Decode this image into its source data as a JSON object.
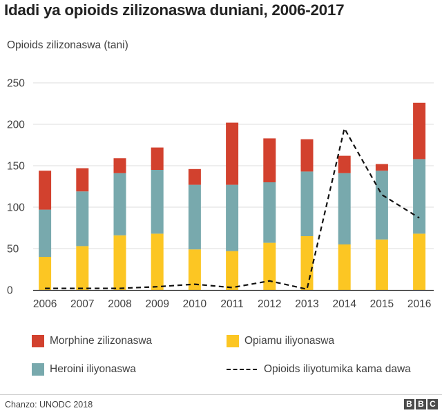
{
  "chart_data": {
    "type": "bar",
    "stacked": true,
    "title": "Idadi ya opioids zilizonaswa duniani, 2006-2017",
    "ylabel": "Opioids zilizonaswa (tani)",
    "xlabel": "",
    "ylim": [
      0,
      250
    ],
    "yticks": [
      0,
      50,
      100,
      150,
      200,
      250
    ],
    "grid": true,
    "categories": [
      "2006",
      "2007",
      "2008",
      "2009",
      "2010",
      "2011",
      "2012",
      "2013",
      "2014",
      "2015",
      "2016"
    ],
    "series": [
      {
        "name": "Opiamu iliyonaswa",
        "color": "#fcc623",
        "values": [
          40,
          53,
          66,
          68,
          49,
          47,
          57,
          65,
          55,
          61,
          68
        ]
      },
      {
        "name": "Heroini iliyonaswa",
        "color": "#78a9ad",
        "values": [
          57,
          66,
          75,
          77,
          78,
          80,
          73,
          78,
          86,
          83,
          90
        ]
      },
      {
        "name": "Morphine zilizonaswa",
        "color": "#d2412e",
        "values": [
          47,
          28,
          18,
          27,
          19,
          75,
          53,
          39,
          21,
          8,
          68
        ]
      }
    ],
    "line_series": {
      "name": "Opioids iliyotumika kama dawa",
      "color": "#111111",
      "style": "dashed",
      "values": [
        2,
        2,
        2,
        4,
        7,
        3,
        11,
        1,
        195,
        115,
        87
      ]
    }
  },
  "legend": {
    "morphine": "Morphine zilizonaswa",
    "opium": "Opiamu iliyonaswa",
    "heroin": "Heroini iliyonaswa",
    "medical": "Opioids iliyotumika kama dawa"
  },
  "footer": {
    "source": "Chanzo: UNODC 2018",
    "logo_letters": [
      "B",
      "B",
      "C"
    ]
  }
}
